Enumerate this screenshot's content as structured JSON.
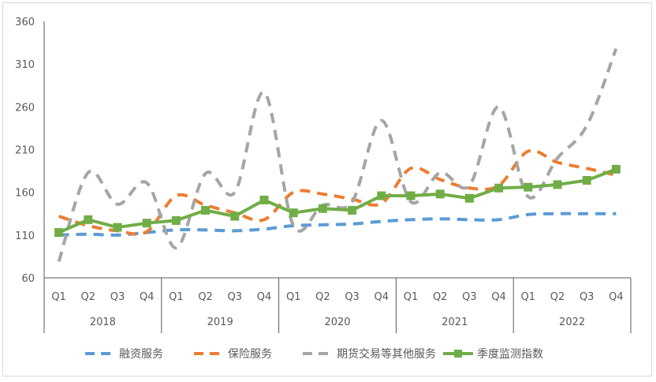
{
  "chart_data": {
    "type": "line",
    "categories": [
      "Q1",
      "Q2",
      "Q3",
      "Q4",
      "Q1",
      "Q2",
      "Q3",
      "Q4",
      "Q1",
      "Q2",
      "Q3",
      "Q4",
      "Q1",
      "Q2",
      "Q3",
      "Q4",
      "Q1",
      "Q2",
      "Q3",
      "Q4"
    ],
    "years": [
      "2018",
      "2019",
      "2020",
      "2021",
      "2022"
    ],
    "ylim": [
      60,
      360
    ],
    "yticks": [
      "360",
      "310",
      "260",
      "210",
      "160",
      "110",
      "60"
    ],
    "grid": false,
    "legend_position": "bottom",
    "series": [
      {
        "name": "融资服务",
        "style": "dashed",
        "color": "#5B9BD5",
        "values": [
          110,
          111,
          110,
          113,
          116,
          116,
          115,
          117,
          121,
          122,
          123,
          126,
          128,
          129,
          128,
          128,
          134,
          135,
          135,
          135
        ]
      },
      {
        "name": "保险服务",
        "style": "dashed",
        "color": "#ED7D31",
        "values": [
          132,
          121,
          115,
          114,
          156,
          145,
          136,
          128,
          160,
          158,
          152,
          147,
          188,
          175,
          165,
          168,
          208,
          195,
          188,
          180
        ]
      },
      {
        "name": "期货交易等其他服务",
        "style": "dashed",
        "color": "#A5A5A5",
        "values": [
          79,
          183,
          146,
          171,
          95,
          182,
          160,
          277,
          121,
          145,
          149,
          244,
          149,
          183,
          168,
          260,
          155,
          200,
          238,
          328
        ]
      },
      {
        "name": "季度监测指数",
        "style": "solid",
        "color": "#70AD47",
        "values": [
          113,
          128,
          119,
          124,
          127,
          139,
          132,
          151,
          136,
          141,
          139,
          156,
          156,
          158,
          153,
          165,
          166,
          169,
          174,
          187
        ]
      }
    ]
  }
}
